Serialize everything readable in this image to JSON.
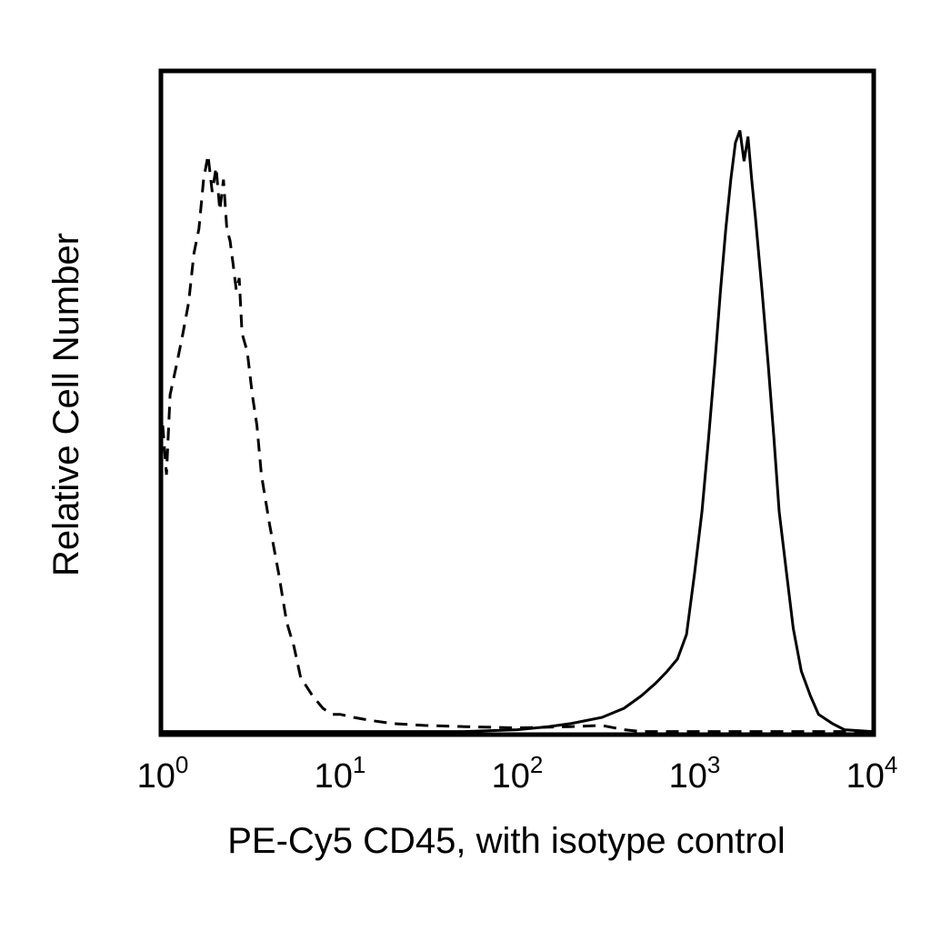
{
  "chart_data": {
    "type": "line",
    "title": "",
    "xlabel": "PE-Cy5 CD45, with isotype control",
    "ylabel": "Relative Cell Number",
    "x_scale": "log",
    "xlim": [
      1,
      10000
    ],
    "ylim": [
      0,
      1
    ],
    "grid": false,
    "legend": "none",
    "x_tick_labels": [
      {
        "value": 1,
        "base": "10",
        "exp": "0"
      },
      {
        "value": 10,
        "base": "10",
        "exp": "1"
      },
      {
        "value": 100,
        "base": "10",
        "exp": "2"
      },
      {
        "value": 1000,
        "base": "10",
        "exp": "3"
      },
      {
        "value": 10000,
        "base": "10",
        "exp": "4"
      }
    ],
    "series": [
      {
        "style": "dashed",
        "color": "#000000",
        "x": [
          1.0,
          1.05,
          1.1,
          1.2,
          1.3,
          1.4,
          1.5,
          1.6,
          1.7,
          1.8,
          1.9,
          2.0,
          2.1,
          2.2,
          2.3,
          2.4,
          2.5,
          2.6,
          2.7,
          2.8,
          3.0,
          3.2,
          3.4,
          3.6,
          4.0,
          4.5,
          5.0,
          5.5,
          6.0,
          7.0,
          8.0,
          9.0,
          10.0,
          12.0,
          15.0,
          20.0,
          30.0,
          50.0,
          100.0,
          200.0,
          300.0,
          400.0,
          500.0,
          10000.0
        ],
        "y": [
          0.5,
          0.42,
          0.55,
          0.6,
          0.65,
          0.7,
          0.78,
          0.82,
          0.9,
          0.94,
          0.88,
          0.92,
          0.85,
          0.9,
          0.82,
          0.8,
          0.76,
          0.72,
          0.74,
          0.65,
          0.62,
          0.55,
          0.5,
          0.42,
          0.34,
          0.26,
          0.18,
          0.14,
          0.09,
          0.06,
          0.04,
          0.03,
          0.03,
          0.025,
          0.02,
          0.015,
          0.012,
          0.01,
          0.008,
          0.01,
          0.012,
          0.005,
          0.002,
          0.002
        ]
      },
      {
        "style": "solid",
        "color": "#000000",
        "x": [
          1.0,
          50.0,
          100.0,
          150.0,
          200.0,
          300.0,
          400.0,
          500.0,
          600.0,
          700.0,
          800.0,
          900.0,
          1000.0,
          1100.0,
          1200.0,
          1300.0,
          1400.0,
          1500.0,
          1600.0,
          1700.0,
          1800.0,
          1900.0,
          2000.0,
          2100.0,
          2200.0,
          2400.0,
          2600.0,
          2800.0,
          3000.0,
          3300.0,
          3600.0,
          4000.0,
          4500.0,
          5000.0,
          6000.0,
          7000.0,
          10000.0
        ],
        "y": [
          0.002,
          0.002,
          0.005,
          0.01,
          0.015,
          0.025,
          0.04,
          0.06,
          0.08,
          0.1,
          0.12,
          0.16,
          0.26,
          0.36,
          0.48,
          0.6,
          0.72,
          0.82,
          0.9,
          0.96,
          0.98,
          0.93,
          0.97,
          0.9,
          0.84,
          0.72,
          0.6,
          0.48,
          0.36,
          0.26,
          0.17,
          0.1,
          0.06,
          0.03,
          0.015,
          0.005,
          0.002
        ]
      }
    ]
  }
}
